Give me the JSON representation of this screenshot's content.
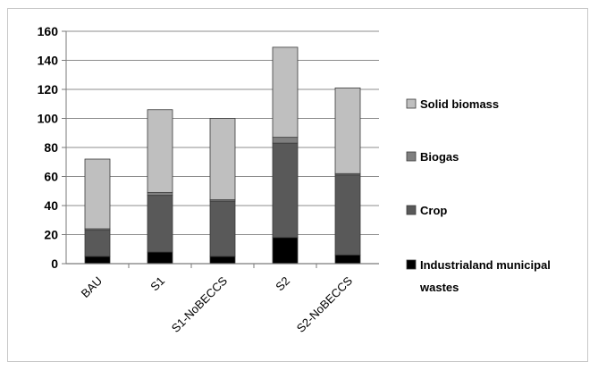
{
  "chart_data": {
    "type": "bar",
    "stacked": true,
    "categories": [
      "BAU",
      "S1",
      "S1-NoBECCS",
      "S2",
      "S2-NoBECCS"
    ],
    "series": [
      {
        "name": "Industrial and municipal wastes",
        "values": [
          5,
          8,
          5,
          18,
          6
        ],
        "color": "#000000"
      },
      {
        "name": "Crop",
        "values": [
          18,
          39,
          38,
          65,
          55
        ],
        "color": "#595959"
      },
      {
        "name": "Biogas",
        "values": [
          1,
          2,
          1,
          4,
          1
        ],
        "color": "#7f7f7f"
      },
      {
        "name": "Solid biomass",
        "values": [
          48,
          57,
          56,
          62,
          59
        ],
        "color": "#bfbfbf"
      }
    ],
    "ylim": [
      0,
      160
    ],
    "yticks": [
      0,
      20,
      40,
      60,
      80,
      100,
      120,
      140,
      160
    ],
    "grid": true,
    "legend_position": "right",
    "legend_order": [
      "Solid biomass",
      "Biogas",
      "Crop",
      "Industrial and municipal wastes"
    ],
    "legend_display": {
      "Solid biomass": [
        "Solid biomass"
      ],
      "Biogas": [
        "Biogas"
      ],
      "Crop": [
        "Crop"
      ],
      "Industrial and municipal wastes": [
        "Industrialand municipal",
        "wastes"
      ]
    }
  }
}
